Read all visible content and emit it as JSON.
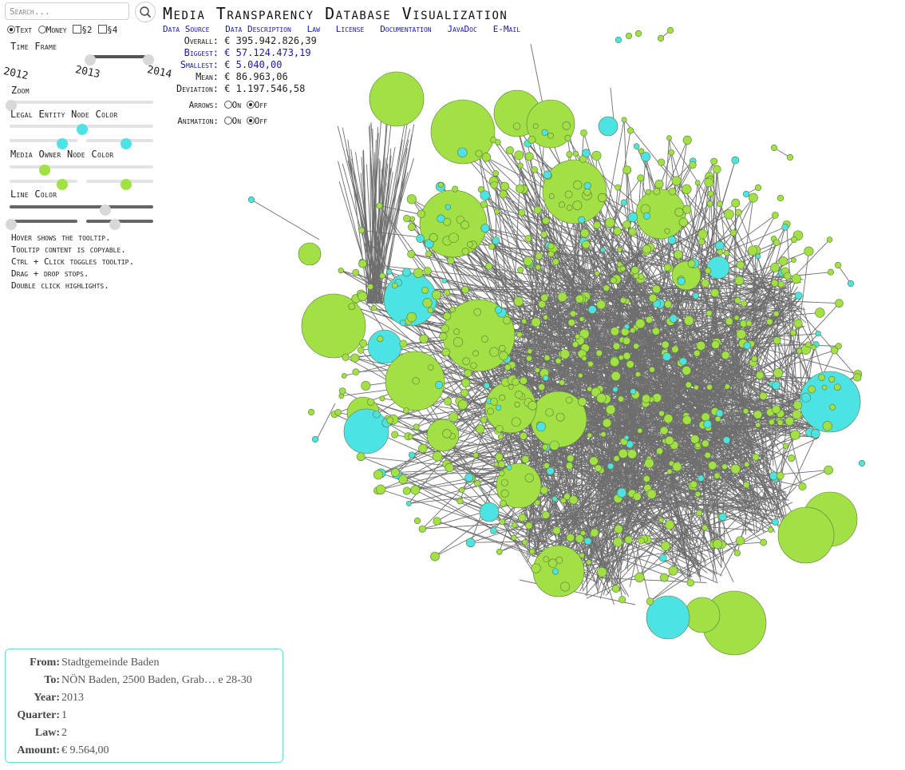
{
  "search": {
    "placeholder": "Search..."
  },
  "mode": {
    "options": [
      {
        "label": "Text",
        "type": "radio",
        "selected": true
      },
      {
        "label": "Money",
        "type": "radio",
        "selected": false
      },
      {
        "label": "§2",
        "type": "checkbox",
        "checked": false
      },
      {
        "label": "§4",
        "type": "checkbox",
        "checked": false
      }
    ]
  },
  "controls": {
    "time_frame_label": "Time Frame",
    "years": [
      "2012",
      "2013",
      "2014"
    ],
    "zoom_label": "Zoom",
    "legal_entity_label": "Legal Entity Node Color",
    "media_owner_label": "Media Owner Node Color",
    "line_color_label": "Line Color"
  },
  "title": "Media Transparency Database Visualization",
  "nav": {
    "links": [
      "Data Source",
      "Data Description",
      "Law",
      "License",
      "Documentation",
      "JavaDoc",
      "E-Mail"
    ]
  },
  "stats": [
    {
      "label": "Overall:",
      "value": "€ 395.942.826,39",
      "link": false
    },
    {
      "label": "Biggest:",
      "value": "€ 57.124.473,19",
      "link": true
    },
    {
      "label": "Smallest:",
      "value": "€ 5.040,00",
      "link": true
    },
    {
      "label": "Mean:",
      "value": "€ 86.963,06",
      "link": false
    },
    {
      "label": "Deviation:",
      "value": "€ 1.197.546,58",
      "link": false
    }
  ],
  "toggles": {
    "arrows": {
      "label": "Arrows:",
      "on": "On",
      "off": "Off",
      "value": "Off"
    },
    "animation": {
      "label": "Animation:",
      "on": "On",
      "off": "Off",
      "value": "Off"
    }
  },
  "help": [
    "Hover shows the tooltip.",
    "Tooltip content is copyable.",
    "Ctrl + Click toggles tooltip.",
    "Drag + drop stops.",
    "Double click highlights."
  ],
  "tooltip": {
    "rows": [
      {
        "key": "From:",
        "value": "Stadtgemeinde Baden"
      },
      {
        "key": "To:",
        "value": "NÖN Baden, 2500 Baden, Grab… e 28-30"
      },
      {
        "key": "Year:",
        "value": "2013"
      },
      {
        "key": "Quarter:",
        "value": "1"
      },
      {
        "key": "Law:",
        "value": "2"
      },
      {
        "key": "Amount:",
        "value": "€ 9.564,00"
      }
    ]
  },
  "colors": {
    "legal_entity_node": "#4de3e5",
    "media_owner_node": "#a2e046",
    "line": "#6e6e6e",
    "node_stroke": "#5a7a3a"
  }
}
